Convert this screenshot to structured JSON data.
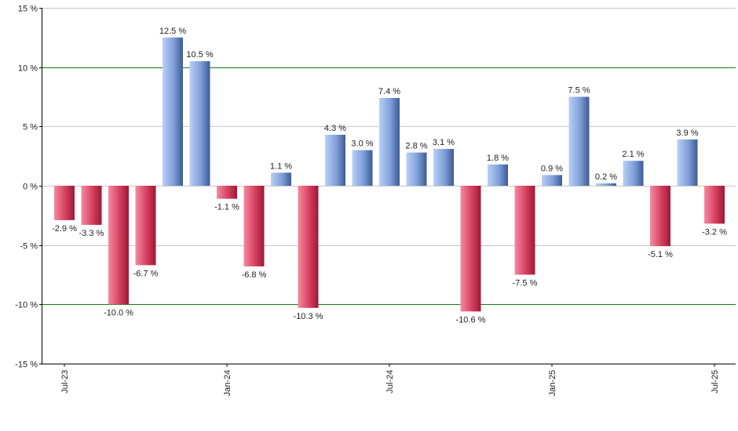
{
  "chart_data": {
    "type": "bar",
    "title": "",
    "xlabel": "",
    "ylabel": "",
    "ylim": [
      -15,
      15
    ],
    "y_ticks": [
      15,
      10,
      5,
      0,
      -5,
      -10,
      -15
    ],
    "y_tick_labels": [
      "15 %",
      "10 %",
      "5 %",
      "0 %",
      "-5 %",
      "-10 %",
      "-15 %"
    ],
    "x_tick_labels": [
      {
        "label": "Jul-23",
        "index": 0
      },
      {
        "label": "Jan-24",
        "index": 6
      },
      {
        "label": "Jul-24",
        "index": 12
      },
      {
        "label": "Jan-25",
        "index": 18
      },
      {
        "label": "Jul-25",
        "index": 24
      }
    ],
    "values": [
      -2.9,
      -3.3,
      -10.0,
      -6.7,
      12.5,
      10.5,
      -1.1,
      -6.8,
      1.1,
      -10.3,
      4.3,
      3.0,
      7.4,
      2.8,
      3.1,
      -10.6,
      1.8,
      -7.5,
      0.9,
      7.5,
      0.2,
      2.1,
      -5.1,
      3.9,
      -3.2
    ],
    "labels": [
      "-2.9 %",
      "-3.3 %",
      "-10.0 %",
      "-6.7 %",
      "12.5 %",
      "10.5 %",
      "-1.1 %",
      "-6.8 %",
      "1.1 %",
      "-10.3 %",
      "4.3 %",
      "3.0 %",
      "7.4 %",
      "2.8 %",
      "3.1 %",
      "-10.6 %",
      "1.8 %",
      "-7.5 %",
      "0.9 %",
      "7.5 %",
      "0.2 %",
      "2.1 %",
      "-5.1 %",
      "3.9 %",
      "-3.2 %"
    ],
    "colors": {
      "positive_light": "#a9c4f2",
      "positive_dark": "#3f5f9c",
      "negative_light": "#f07a90",
      "negative_dark": "#b0203f",
      "grid": "#c8c8c8",
      "grid_major": "#1a7a1a",
      "axis": "#000000"
    }
  }
}
